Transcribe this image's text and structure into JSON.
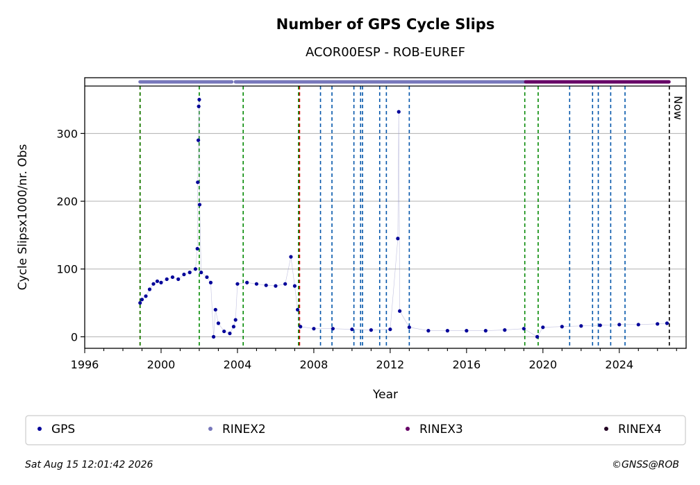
{
  "chart_data": {
    "type": "scatter",
    "title": "Number of GPS Cycle Slips",
    "subtitle": "ACOR00ESP - ROB-EUREF",
    "xlabel": "Year",
    "ylabel": "Cycle Slipsx1000/nr. Obs",
    "xlim": [
      1996,
      2027.5
    ],
    "ylim": [
      -17,
      370
    ],
    "xticks": [
      "1996",
      "2000",
      "2004",
      "2008",
      "2012",
      "2016",
      "2020",
      "2024"
    ],
    "yticks": [
      "0",
      "100",
      "200",
      "300"
    ],
    "grid": "horizontal",
    "now_label": "Now",
    "now_year": 2026.62,
    "series": [
      {
        "name": "GPS",
        "color": "#000099",
        "points": [
          [
            1998.9,
            50
          ],
          [
            1999.0,
            55
          ],
          [
            1999.2,
            60
          ],
          [
            1999.4,
            70
          ],
          [
            1999.6,
            78
          ],
          [
            1999.8,
            82
          ],
          [
            2000.0,
            80
          ],
          [
            2000.3,
            85
          ],
          [
            2000.6,
            88
          ],
          [
            2000.9,
            85
          ],
          [
            2001.2,
            92
          ],
          [
            2001.5,
            95
          ],
          [
            2001.8,
            100
          ],
          [
            2001.9,
            130
          ],
          [
            2001.92,
            228
          ],
          [
            2001.95,
            290
          ],
          [
            2001.97,
            340
          ],
          [
            2002.0,
            350
          ],
          [
            2002.02,
            195
          ],
          [
            2002.1,
            95
          ],
          [
            2002.4,
            88
          ],
          [
            2002.6,
            80
          ],
          [
            2002.75,
            0
          ],
          [
            2002.85,
            40
          ],
          [
            2003.0,
            20
          ],
          [
            2003.3,
            8
          ],
          [
            2003.6,
            5
          ],
          [
            2003.8,
            15
          ],
          [
            2003.9,
            25
          ],
          [
            2004.0,
            78
          ],
          [
            2004.5,
            80
          ],
          [
            2005.0,
            78
          ],
          [
            2005.5,
            76
          ],
          [
            2006.0,
            75
          ],
          [
            2006.5,
            78
          ],
          [
            2006.8,
            118
          ],
          [
            2007.0,
            75
          ],
          [
            2007.15,
            40
          ],
          [
            2007.3,
            15
          ],
          [
            2008.0,
            12
          ],
          [
            2009.0,
            12
          ],
          [
            2010.0,
            11
          ],
          [
            2011.0,
            10
          ],
          [
            2012.0,
            11
          ],
          [
            2012.4,
            145
          ],
          [
            2012.45,
            332
          ],
          [
            2012.5,
            38
          ],
          [
            2013.0,
            14
          ],
          [
            2014.0,
            9
          ],
          [
            2015.0,
            9
          ],
          [
            2016.0,
            9
          ],
          [
            2017.0,
            9
          ],
          [
            2018.0,
            10
          ],
          [
            2019.0,
            12
          ],
          [
            2019.7,
            0
          ],
          [
            2020.0,
            14
          ],
          [
            2021.0,
            15
          ],
          [
            2022.0,
            16
          ],
          [
            2023.0,
            17
          ],
          [
            2024.0,
            18
          ],
          [
            2025.0,
            18
          ],
          [
            2026.0,
            19
          ],
          [
            2026.5,
            20
          ]
        ]
      },
      {
        "name": "RINEX2",
        "color": "#7777bb",
        "ranges": [
          [
            1998.9,
            2003.7
          ],
          [
            2003.9,
            2019.1
          ]
        ]
      },
      {
        "name": "RINEX3",
        "color": "#660066",
        "ranges": [
          [
            2019.1,
            2026.6
          ]
        ]
      },
      {
        "name": "RINEX4",
        "color": "#220022",
        "ranges": []
      }
    ],
    "vlines": {
      "red": [
        1998.9,
        2007.25
      ],
      "green": [
        1998.9,
        2002.0,
        2004.3,
        2007.2,
        2019.05,
        2019.75
      ],
      "blue": [
        2008.35,
        2008.95,
        2010.1,
        2010.45,
        2010.55,
        2011.45,
        2011.8,
        2013.0,
        2021.4,
        2022.6,
        2022.9,
        2023.55,
        2024.3
      ],
      "black": [
        2026.62
      ]
    },
    "legend_placement": "bottom"
  },
  "footer": {
    "timestamp": "Sat Aug 15 12:01:42 2026",
    "copyright": "©GNSS@ROB"
  }
}
